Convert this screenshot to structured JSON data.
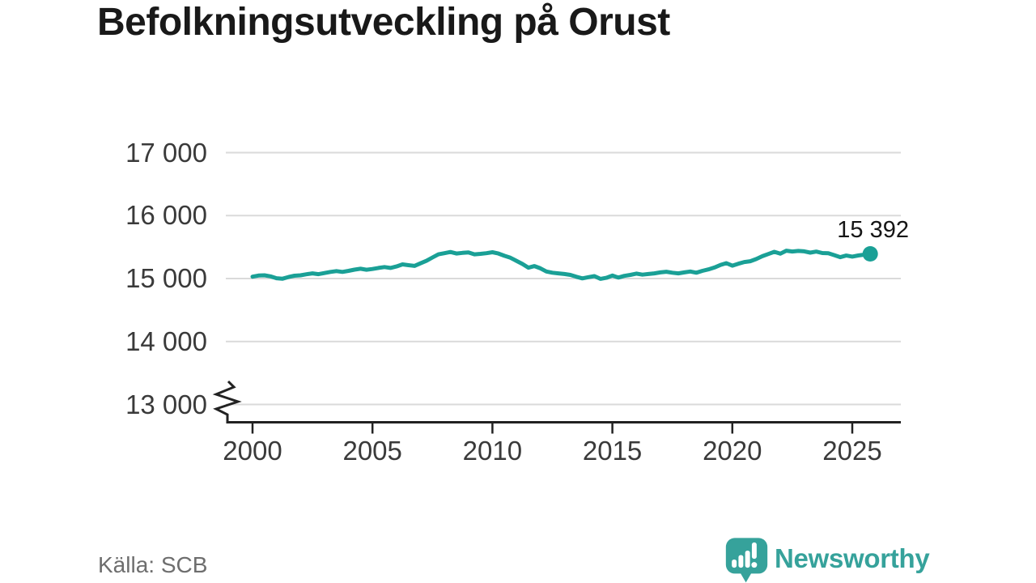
{
  "title": "Befolkningsutveckling på Orust",
  "source": "Källa: SCB",
  "branding": {
    "name": "Newsworthy",
    "icon": "newsworthy-bubble-bar-chart-icon",
    "color": "#36a29b"
  },
  "colors": {
    "line": "#1aa096",
    "grid": "#dadada",
    "axis": "#222222",
    "title_text": "#191919",
    "tick_text": "#3a3a3a",
    "value_text": "#151515",
    "source_text": "#6e6e6e",
    "background": "#ffffff"
  },
  "chart_data": {
    "type": "line",
    "title": "Befolkningsutveckling på Orust",
    "x_start": 2000,
    "x_step": 0.25,
    "x_end": 2025.75,
    "values": [
      15030,
      15048,
      15052,
      15035,
      15005,
      14998,
      15025,
      15045,
      15052,
      15068,
      15082,
      15070,
      15088,
      15105,
      15118,
      15105,
      15122,
      15142,
      15155,
      15140,
      15152,
      15168,
      15182,
      15168,
      15192,
      15225,
      15212,
      15200,
      15242,
      15282,
      15335,
      15385,
      15402,
      15422,
      15398,
      15408,
      15415,
      15385,
      15392,
      15402,
      15418,
      15398,
      15362,
      15330,
      15282,
      15232,
      15172,
      15198,
      15162,
      15112,
      15092,
      15082,
      15072,
      15058,
      15028,
      15002,
      15022,
      15038,
      14995,
      15012,
      15048,
      15015,
      15042,
      15058,
      15078,
      15062,
      15072,
      15082,
      15098,
      15108,
      15092,
      15082,
      15098,
      15112,
      15092,
      15122,
      15145,
      15175,
      15215,
      15245,
      15205,
      15235,
      15262,
      15275,
      15310,
      15355,
      15390,
      15425,
      15395,
      15442,
      15430,
      15438,
      15432,
      15412,
      15428,
      15405,
      15402,
      15372,
      15340,
      15365,
      15348,
      15366,
      15380,
      15392
    ],
    "x_ticks": [
      2000,
      2005,
      2010,
      2015,
      2020,
      2025
    ],
    "y_ticks": [
      {
        "value": 17000,
        "label": "17 000"
      },
      {
        "value": 16000,
        "label": "16 000"
      },
      {
        "value": 15000,
        "label": "15 000"
      },
      {
        "value": 14000,
        "label": "14 000"
      },
      {
        "value": 13000,
        "label": "13 000"
      }
    ],
    "ylim_displayed": [
      13000,
      17000
    ],
    "axis_break": true,
    "grid": "horizontal",
    "legend": "none",
    "last_value": 15392,
    "last_value_label": "15 392"
  }
}
